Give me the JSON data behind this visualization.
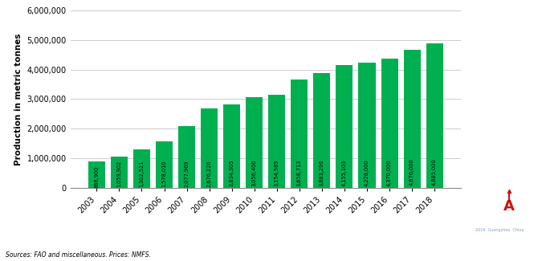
{
  "years": [
    "2003",
    "2004",
    "2005",
    "2006",
    "2007",
    "2008",
    "2009",
    "2010",
    "2011",
    "2012",
    "2013",
    "2014",
    "2015",
    "2016",
    "2017",
    "2018"
  ],
  "values": [
    886900,
    1059902,
    1302521,
    1578010,
    2077969,
    2676220,
    2834305,
    3056400,
    3154589,
    3658713,
    3883296,
    4155103,
    4228000,
    4370000,
    4676000,
    4885000
  ],
  "bar_color": "#00b050",
  "ylabel": "Production in metric tonnes",
  "ylim": [
    0,
    6000000
  ],
  "yticks": [
    0,
    1000000,
    2000000,
    3000000,
    4000000,
    5000000,
    6000000
  ],
  "source_text": "Sources: FAO and miscellaneous. Prices: NMFS.",
  "background_color": "#ffffff",
  "grid_color": "#cccccc",
  "logo_box_color": "#1b2a4a",
  "logo_text_color": "#ffffff",
  "logo_subtitle": "2016  Guangzhou  China"
}
